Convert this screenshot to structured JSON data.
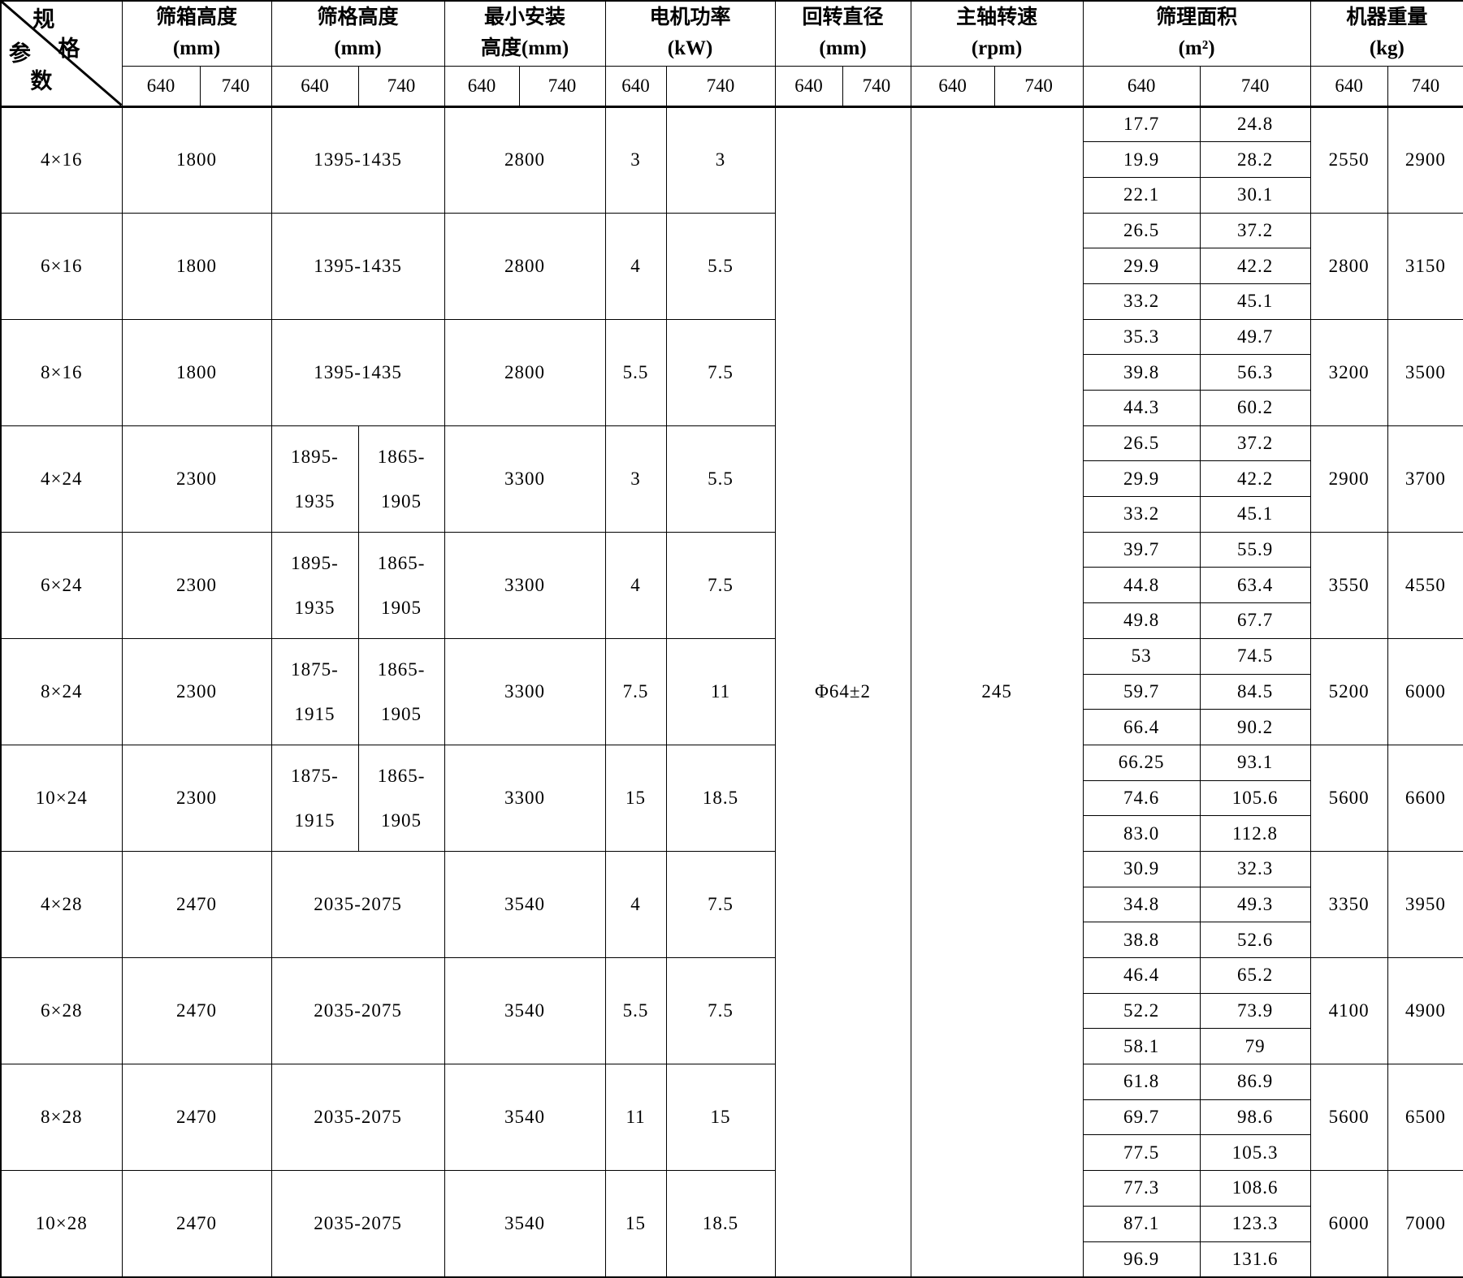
{
  "table": {
    "corner": {
      "spec_char1": "规",
      "spec_char2": "格",
      "param_char1": "参",
      "param_char2": "数"
    },
    "groups": [
      {
        "line1": "筛箱高度",
        "line2": "(mm)"
      },
      {
        "line1": "筛格高度",
        "line2": "(mm)"
      },
      {
        "line1": "最小安装",
        "line2": "高度(mm)"
      },
      {
        "line1": "电机功率",
        "line2": "(kW)"
      },
      {
        "line1": "回转直径",
        "line2": "(mm)"
      },
      {
        "line1": "主轴转速",
        "line2": "(rpm)"
      },
      {
        "line1": "筛理面积",
        "line2": "(m²)"
      },
      {
        "line1": "机器重量",
        "line2": "(kg)"
      }
    ],
    "subcols": [
      "640",
      "740"
    ],
    "shared": {
      "rotary_diameter": "Φ64±2",
      "spindle_speed": "245"
    },
    "rows": [
      {
        "spec": "4×16",
        "box": "1800",
        "grid": [
          "1395-1435"
        ],
        "install": "2800",
        "power": [
          "3",
          "3"
        ],
        "areas": [
          [
            "17.7",
            "24.8"
          ],
          [
            "19.9",
            "28.2"
          ],
          [
            "22.1",
            "30.1"
          ]
        ],
        "weight": [
          "2550",
          "2900"
        ]
      },
      {
        "spec": "6×16",
        "box": "1800",
        "grid": [
          "1395-1435"
        ],
        "install": "2800",
        "power": [
          "4",
          "5.5"
        ],
        "areas": [
          [
            "26.5",
            "37.2"
          ],
          [
            "29.9",
            "42.2"
          ],
          [
            "33.2",
            "45.1"
          ]
        ],
        "weight": [
          "2800",
          "3150"
        ]
      },
      {
        "spec": "8×16",
        "box": "1800",
        "grid": [
          "1395-1435"
        ],
        "install": "2800",
        "power": [
          "5.5",
          "7.5"
        ],
        "areas": [
          [
            "35.3",
            "49.7"
          ],
          [
            "39.8",
            "56.3"
          ],
          [
            "44.3",
            "60.2"
          ]
        ],
        "weight": [
          "3200",
          "3500"
        ]
      },
      {
        "spec": "4×24",
        "box": "2300",
        "grid": [
          "1895- 1935",
          "1865- 1905"
        ],
        "install": "3300",
        "power": [
          "3",
          "5.5"
        ],
        "areas": [
          [
            "26.5",
            "37.2"
          ],
          [
            "29.9",
            "42.2"
          ],
          [
            "33.2",
            "45.1"
          ]
        ],
        "weight": [
          "2900",
          "3700"
        ]
      },
      {
        "spec": "6×24",
        "box": "2300",
        "grid": [
          "1895- 1935",
          "1865- 1905"
        ],
        "install": "3300",
        "power": [
          "4",
          "7.5"
        ],
        "areas": [
          [
            "39.7",
            "55.9"
          ],
          [
            "44.8",
            "63.4"
          ],
          [
            "49.8",
            "67.7"
          ]
        ],
        "weight": [
          "3550",
          "4550"
        ]
      },
      {
        "spec": "8×24",
        "box": "2300",
        "grid": [
          "1875- 1915",
          "1865- 1905"
        ],
        "install": "3300",
        "power": [
          "7.5",
          "11"
        ],
        "areas": [
          [
            "53",
            "74.5"
          ],
          [
            "59.7",
            "84.5"
          ],
          [
            "66.4",
            "90.2"
          ]
        ],
        "weight": [
          "5200",
          "6000"
        ]
      },
      {
        "spec": "10×24",
        "box": "2300",
        "grid": [
          "1875- 1915",
          "1865- 1905"
        ],
        "install": "3300",
        "power": [
          "15",
          "18.5"
        ],
        "areas": [
          [
            "66.25",
            "93.1"
          ],
          [
            "74.6",
            "105.6"
          ],
          [
            "83.0",
            "112.8"
          ]
        ],
        "weight": [
          "5600",
          "6600"
        ]
      },
      {
        "spec": "4×28",
        "box": "2470",
        "grid": [
          "2035-2075"
        ],
        "install": "3540",
        "power": [
          "4",
          "7.5"
        ],
        "areas": [
          [
            "30.9",
            "32.3"
          ],
          [
            "34.8",
            "49.3"
          ],
          [
            "38.8",
            "52.6"
          ]
        ],
        "weight": [
          "3350",
          "3950"
        ]
      },
      {
        "spec": "6×28",
        "box": "2470",
        "grid": [
          "2035-2075"
        ],
        "install": "3540",
        "power": [
          "5.5",
          "7.5"
        ],
        "areas": [
          [
            "46.4",
            "65.2"
          ],
          [
            "52.2",
            "73.9"
          ],
          [
            "58.1",
            "79"
          ]
        ],
        "weight": [
          "4100",
          "4900"
        ]
      },
      {
        "spec": "8×28",
        "box": "2470",
        "grid": [
          "2035-2075"
        ],
        "install": "3540",
        "power": [
          "11",
          "15"
        ],
        "areas": [
          [
            "61.8",
            "86.9"
          ],
          [
            "69.7",
            "98.6"
          ],
          [
            "77.5",
            "105.3"
          ]
        ],
        "weight": [
          "5600",
          "6500"
        ]
      },
      {
        "spec": "10×28",
        "box": "2470",
        "grid": [
          "2035-2075"
        ],
        "install": "3540",
        "power": [
          "15",
          "18.5"
        ],
        "areas": [
          [
            "77.3",
            "108.6"
          ],
          [
            "87.1",
            "123.3"
          ],
          [
            "96.9",
            "131.6"
          ]
        ],
        "weight": [
          "6000",
          "7000"
        ]
      }
    ]
  }
}
